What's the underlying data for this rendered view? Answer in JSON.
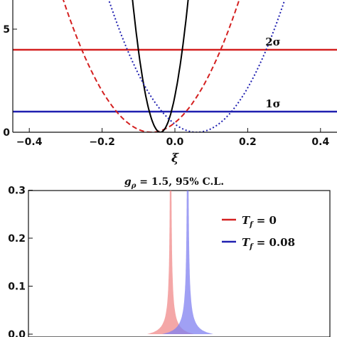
{
  "colors": {
    "red": "#d42020",
    "blue": "#1f1fb0",
    "black": "#000000",
    "red_fill": "#f08a8a",
    "blue_fill": "#8080f0"
  },
  "chart_data": [
    {
      "type": "line",
      "title": "",
      "xlabel": "ξ",
      "ylabel": "",
      "xlim": [
        -0.42,
        0.42
      ],
      "ylim": [
        0,
        9.5
      ],
      "x_ticks": [
        "−0.4",
        "−0.2",
        "0.0",
        "0.2",
        "0.4"
      ],
      "x_tick_values": [
        -0.4,
        -0.2,
        0.0,
        0.2,
        0.4
      ],
      "y_ticks": [
        "0",
        "5"
      ],
      "y_tick_values": [
        0,
        5
      ],
      "hlines": [
        {
          "label": "2σ",
          "y": 4.0,
          "color": "#d42020"
        },
        {
          "label": "1σ",
          "y": 1.0,
          "color": "#1f1fb0"
        }
      ],
      "series": [
        {
          "style": "dashed",
          "color": "#d42020",
          "minimum_x": -0.065,
          "curvature": 110,
          "x": [
            -0.18,
            -0.14,
            -0.1,
            -0.065,
            -0.03,
            0.0,
            0.01
          ],
          "y": [
            1.45,
            0.62,
            0.13,
            0.0,
            0.13,
            0.46,
            0.61
          ]
        },
        {
          "style": "solid",
          "color": "#000000",
          "minimum_x": -0.04,
          "curvature": 1100,
          "x": [
            -0.1,
            -0.07,
            -0.04,
            -0.01,
            0.02
          ],
          "y": [
            3.96,
            0.99,
            0.0,
            0.99,
            3.96
          ]
        },
        {
          "style": "dotted",
          "color": "#1f1fb0",
          "minimum_x": 0.06,
          "curvature": 110,
          "x": [
            -0.06,
            0.0,
            0.06,
            0.12,
            0.18
          ],
          "y": [
            1.58,
            0.4,
            0.0,
            0.4,
            1.58
          ]
        }
      ]
    },
    {
      "type": "area",
      "title": "g_ρ = 1.5, 95% C.L.",
      "title_parts": {
        "symbol": "g",
        "subscript": "ρ",
        "rest": " = 1.5, 95% C.L."
      },
      "xlabel": "",
      "ylabel": "",
      "ylim": [
        0.0,
        0.3
      ],
      "y_ticks": [
        "0.0",
        "0.1",
        "0.2",
        "0.3"
      ],
      "y_tick_values": [
        0.0,
        0.1,
        0.2,
        0.3
      ],
      "legend": {
        "placement": "top-right"
      },
      "series": [
        {
          "name": "T_f = 0",
          "name_parts": {
            "symbol": "T",
            "subscript": "f",
            "rest": " = 0"
          },
          "color": "#f08a8a",
          "line_color": "#d42020",
          "center": -0.02,
          "width": 0.055
        },
        {
          "name": "T_f = 0.08",
          "name_parts": {
            "symbol": "T",
            "subscript": "f",
            "rest": " = 0.08"
          },
          "color": "#8080f0",
          "line_color": "#1f1fb0",
          "center": 0.02,
          "width": 0.06
        }
      ]
    }
  ]
}
